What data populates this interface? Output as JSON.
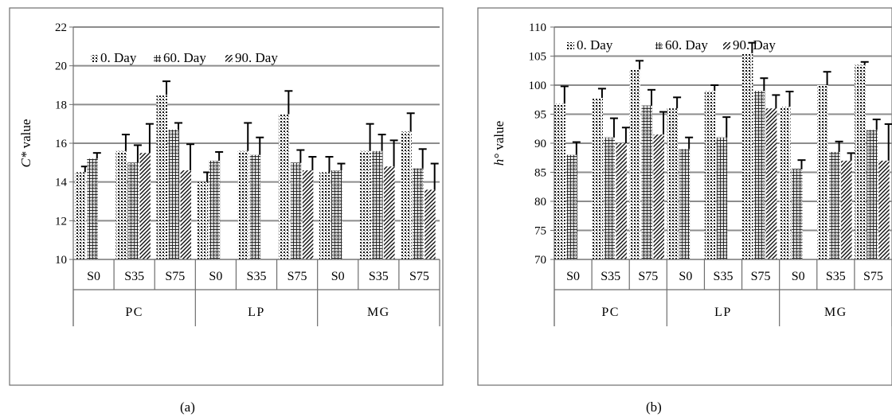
{
  "colors": {
    "frame": "#6e6e6e",
    "grid": "#8c8c8c",
    "error_bar": "#000000",
    "text": "#000000"
  },
  "captions": {
    "a": "(a)",
    "b": "(b)"
  },
  "chart_data": [
    {
      "type": "bar",
      "caption": "(a)",
      "ylabel_italic": "C*",
      "ylabel_rest": " value",
      "ylim": [
        10,
        22
      ],
      "yticks": [
        10,
        12,
        14,
        16,
        18,
        20,
        22
      ],
      "grid": true,
      "legend_position": "top",
      "groups": [
        "PC",
        "LP",
        "MG"
      ],
      "categories": [
        "S0",
        "S35",
        "S75",
        "S0",
        "S35",
        "S75",
        "S0",
        "S35",
        "S75"
      ],
      "series": [
        {
          "name": "0. Day",
          "pattern": "dots",
          "values": [
            14.5,
            15.6,
            18.5,
            14.0,
            15.6,
            17.5,
            14.5,
            15.6,
            16.6
          ],
          "errors": [
            0.3,
            0.85,
            0.7,
            0.5,
            1.45,
            1.2,
            0.8,
            1.4,
            0.95
          ]
        },
        {
          "name": "60. Day",
          "pattern": "grid",
          "values": [
            15.2,
            15.0,
            16.7,
            15.1,
            15.4,
            15.0,
            14.6,
            15.6,
            14.7
          ],
          "errors": [
            0.3,
            0.9,
            0.35,
            0.45,
            0.9,
            0.65,
            0.35,
            0.85,
            1.0
          ]
        },
        {
          "name": "90. Day",
          "pattern": "diag",
          "values": null,
          "values_by_index": [
            null,
            15.5,
            14.6,
            null,
            null,
            14.6,
            null,
            14.8,
            13.6
          ],
          "errors_by_index": [
            null,
            1.5,
            1.35,
            null,
            null,
            0.7,
            null,
            1.35,
            1.35
          ]
        }
      ]
    },
    {
      "type": "bar",
      "caption": "(b)",
      "ylabel_italic": "h°",
      "ylabel_rest": " value",
      "ylim": [
        70,
        110
      ],
      "yticks": [
        70,
        75,
        80,
        85,
        90,
        95,
        100,
        105,
        110
      ],
      "grid": true,
      "legend_position": "top",
      "groups": [
        "PC",
        "LP",
        "MG"
      ],
      "categories": [
        "S0",
        "S35",
        "S75",
        "S0",
        "S35",
        "S75",
        "S0",
        "S35",
        "S75"
      ],
      "series": [
        {
          "name": "0. Day",
          "pattern": "dots",
          "values": [
            96.8,
            97.8,
            102.7,
            96.0,
            99.0,
            105.5,
            96.3,
            100.0,
            103.5
          ],
          "errors": [
            3.0,
            1.6,
            1.5,
            1.9,
            1.0,
            1.8,
            2.6,
            2.3,
            0.5
          ]
        },
        {
          "name": "60. Day",
          "pattern": "grid",
          "values": [
            88.0,
            91.0,
            96.5,
            89.0,
            91.0,
            99.0,
            85.6,
            88.5,
            92.3
          ],
          "errors": [
            2.2,
            3.3,
            2.7,
            2.0,
            3.5,
            2.2,
            1.5,
            1.8,
            1.8
          ]
        },
        {
          "name": "90. Day",
          "pattern": "diag",
          "values": [
            null,
            90.0,
            91.5,
            null,
            null,
            96.0,
            null,
            87.0,
            87.0
          ],
          "errors": [
            null,
            2.7,
            3.9,
            null,
            null,
            2.3,
            null,
            1.3,
            6.3
          ]
        }
      ]
    }
  ]
}
